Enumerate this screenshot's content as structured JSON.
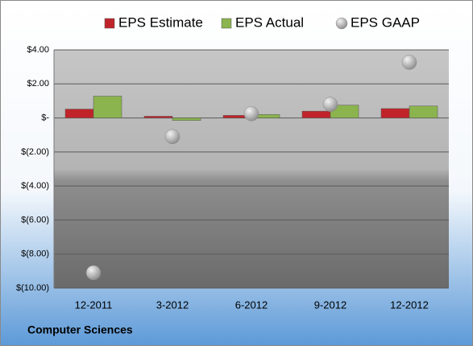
{
  "chart_data": {
    "type": "bar",
    "title": "Computer Sciences",
    "categories": [
      "12-2011",
      "3-2012",
      "6-2012",
      "9-2012",
      "12-2012"
    ],
    "series": [
      {
        "name": "EPS Estimate",
        "color": "#c0242a",
        "values": [
          0.52,
          0.1,
          0.15,
          0.4,
          0.55
        ]
      },
      {
        "name": "EPS Actual",
        "color": "#8cb44e",
        "values": [
          1.28,
          -0.15,
          0.2,
          0.75,
          0.7
        ]
      },
      {
        "name": "EPS GAAP",
        "color": "#a6a6a6",
        "type": "scatter",
        "values": [
          -9.1,
          -1.1,
          0.25,
          0.8,
          3.27
        ]
      }
    ],
    "ylim": [
      -10,
      4
    ],
    "yticks": [
      {
        "value": 4,
        "label": "$4.00"
      },
      {
        "value": 2,
        "label": "$2.00"
      },
      {
        "value": 0,
        "label": "$-"
      },
      {
        "value": -2,
        "label": "$(2.00)"
      },
      {
        "value": -4,
        "label": "$(4.00)"
      },
      {
        "value": -6,
        "label": "$(6.00)"
      },
      {
        "value": -8,
        "label": "$(8.00)"
      },
      {
        "value": -10,
        "label": "$(10.00)"
      }
    ],
    "grid": true,
    "legend": "top"
  }
}
